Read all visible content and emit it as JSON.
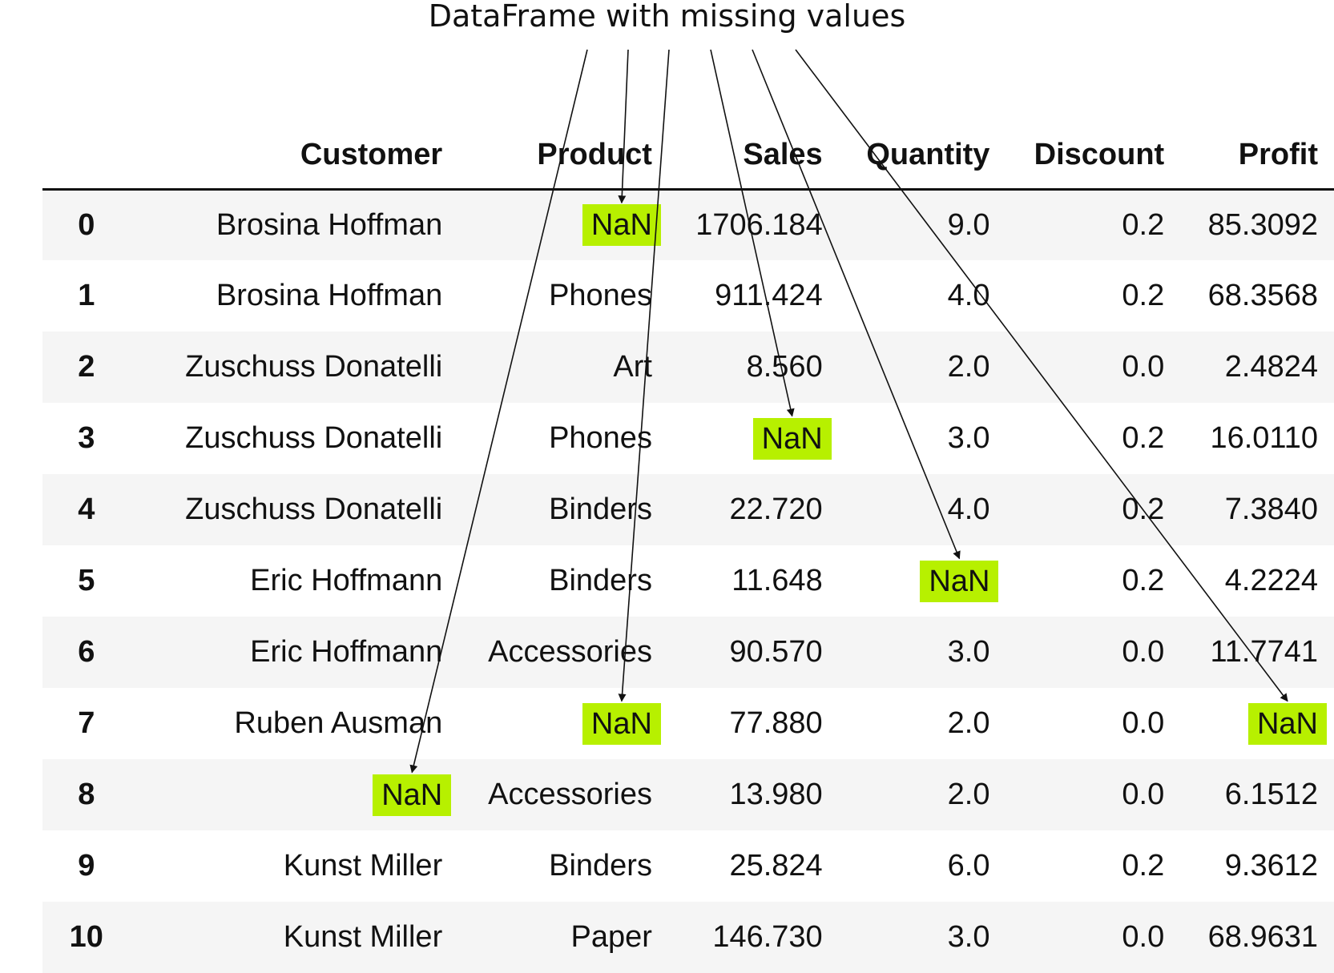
{
  "title": "DataFrame with missing values",
  "dataframe": {
    "columns": [
      "",
      "Customer",
      "Product",
      "Sales",
      "Quantity",
      "Discount",
      "Profit"
    ],
    "rows": [
      [
        "0",
        "Brosina Hoffman",
        "NaN",
        "1706.184",
        "9.0",
        "0.2",
        "85.3092"
      ],
      [
        "1",
        "Brosina Hoffman",
        "Phones",
        "911.424",
        "4.0",
        "0.2",
        "68.3568"
      ],
      [
        "2",
        "Zuschuss Donatelli",
        "Art",
        "8.560",
        "2.0",
        "0.0",
        "2.4824"
      ],
      [
        "3",
        "Zuschuss Donatelli",
        "Phones",
        "NaN",
        "3.0",
        "0.2",
        "16.0110"
      ],
      [
        "4",
        "Zuschuss Donatelli",
        "Binders",
        "22.720",
        "4.0",
        "0.2",
        "7.3840"
      ],
      [
        "5",
        "Eric Hoffmann",
        "Binders",
        "11.648",
        "NaN",
        "0.2",
        "4.2224"
      ],
      [
        "6",
        "Eric Hoffmann",
        "Accessories",
        "90.570",
        "3.0",
        "0.0",
        "11.7741"
      ],
      [
        "7",
        "Ruben Ausman",
        "NaN",
        "77.880",
        "2.0",
        "0.0",
        "NaN"
      ],
      [
        "8",
        "NaN",
        "Accessories",
        "13.980",
        "2.0",
        "0.0",
        "6.1512"
      ],
      [
        "9",
        "Kunst Miller",
        "Binders",
        "25.824",
        "6.0",
        "0.2",
        "9.3612"
      ],
      [
        "10",
        "Kunst Miller",
        "Paper",
        "146.730",
        "3.0",
        "0.0",
        "68.9631"
      ]
    ]
  },
  "colors": {
    "nan_highlight": "#b7f000",
    "stripe": "#f5f5f5",
    "arrow": "#111111"
  }
}
